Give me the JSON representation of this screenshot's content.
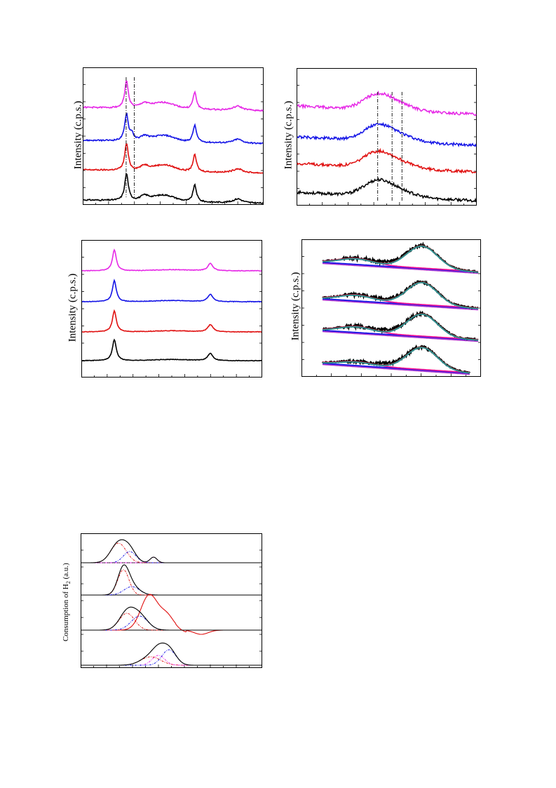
{
  "colors": {
    "black": "#000000",
    "red": "#e01010",
    "blue": "#1414e6",
    "magenta": "#e628e6",
    "teal": "#2a8f8f",
    "pink": "#ff1090",
    "purple": "#b03ad0"
  },
  "chart_data": [
    {
      "id": "a",
      "type": "line",
      "ylabel": "Intensity (c.p.s.)",
      "grid": false,
      "series": [
        {
          "color": "black",
          "offset": 0,
          "peaks": [
            [
              0.24,
              0.08,
              0.012
            ],
            [
              0.34,
              0.015,
              0.03
            ],
            [
              0.62,
              0.05,
              0.012
            ],
            [
              0.86,
              0.012,
              0.03
            ]
          ]
        },
        {
          "color": "red",
          "offset": 1,
          "peaks": [
            [
              0.24,
              0.08,
              0.012
            ],
            [
              0.34,
              0.015,
              0.03
            ],
            [
              0.62,
              0.05,
              0.012
            ],
            [
              0.86,
              0.012,
              0.03
            ]
          ]
        },
        {
          "color": "blue",
          "offset": 2,
          "peaks": [
            [
              0.24,
              0.08,
              0.012
            ],
            [
              0.27,
              0.02,
              0.01
            ],
            [
              0.34,
              0.015,
              0.03
            ],
            [
              0.62,
              0.05,
              0.012
            ],
            [
              0.86,
              0.012,
              0.03
            ]
          ]
        },
        {
          "color": "magenta",
          "offset": 3,
          "peaks": [
            [
              0.24,
              0.08,
              0.012
            ],
            [
              0.34,
              0.015,
              0.03
            ],
            [
              0.62,
              0.05,
              0.012
            ],
            [
              0.86,
              0.012,
              0.03
            ]
          ]
        }
      ],
      "reference_lines": [
        0.24,
        0.285
      ]
    },
    {
      "id": "b",
      "type": "line",
      "ylabel": "Intensity (c.p.s.)",
      "grid": false,
      "series": [
        {
          "color": "black",
          "offset": 0
        },
        {
          "color": "red",
          "offset": 1
        },
        {
          "color": "blue",
          "offset": 2
        },
        {
          "color": "magenta",
          "offset": 3
        }
      ],
      "reference_lines": [
        0.45,
        0.53,
        0.585
      ]
    },
    {
      "id": "c",
      "type": "line",
      "ylabel": "Intensity (c.p.s.)",
      "grid": false,
      "series": [
        {
          "color": "black",
          "offset": 0
        },
        {
          "color": "red",
          "offset": 1
        },
        {
          "color": "blue",
          "offset": 2
        },
        {
          "color": "magenta",
          "offset": 3
        }
      ]
    },
    {
      "id": "d",
      "type": "line",
      "ylabel": "Intensity (c.p.s.)",
      "grid": false,
      "series": [
        {
          "color": "black",
          "offset": 0
        },
        {
          "color": "black",
          "offset": 1
        },
        {
          "color": "black",
          "offset": 2
        },
        {
          "color": "black",
          "offset": 3
        }
      ],
      "fit_components": [
        "teal",
        "pink",
        "blue",
        "purple"
      ]
    },
    {
      "id": "e",
      "type": "line",
      "ylabel": "Consumption of H",
      "ylabel_subscript": "2",
      "ylabel_suffix": " (a.u.)",
      "grid": false,
      "series": [
        {
          "color": "black",
          "offset": 0
        },
        {
          "color": "black",
          "offset": 1
        },
        {
          "color": "red",
          "offset": 1
        },
        {
          "color": "black",
          "offset": 2
        },
        {
          "color": "black",
          "offset": 3
        }
      ],
      "fit_components": [
        "red",
        "blue",
        "magenta"
      ]
    }
  ]
}
